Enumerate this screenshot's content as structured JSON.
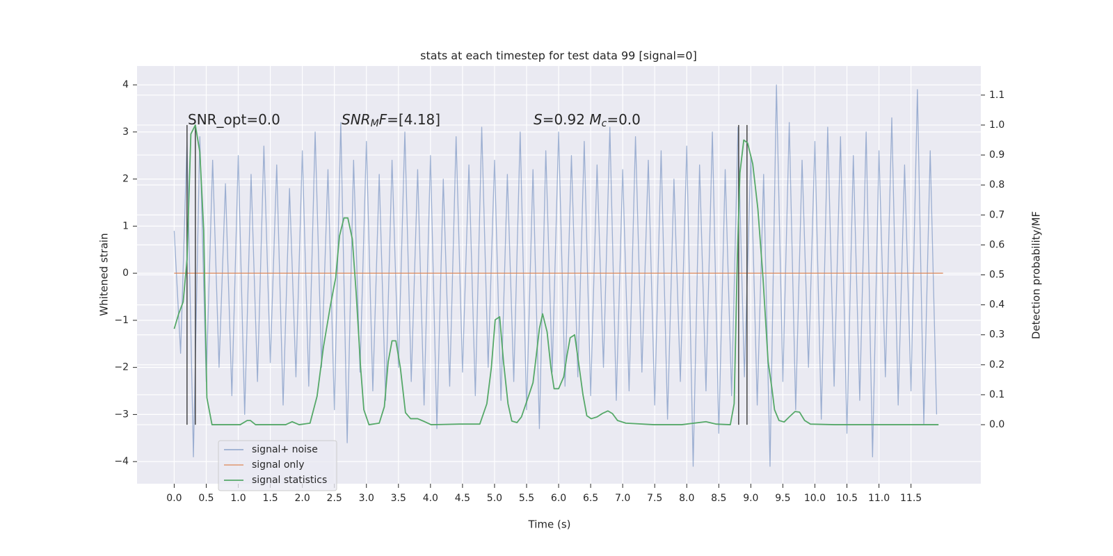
{
  "chart_data": {
    "type": "line",
    "title": "stats at each timestep for test data 99 [signal=0]",
    "x_label": "Time (s)",
    "y_label": "Whitened strain",
    "y2_label": "Detection probability/MF",
    "grid": true,
    "background": "#eaeaf2",
    "legend": "lower left",
    "xlim": [
      -0.58,
      12.59
    ],
    "ylim": [
      -4.47,
      4.4
    ],
    "y2lim": [
      -0.197,
      1.197
    ],
    "xticks": [
      {
        "value": 0,
        "label": "0.0"
      },
      0.5,
      {
        "value": 1,
        "label": "1.0"
      },
      1.5,
      {
        "value": 2,
        "label": "2.0"
      },
      2.5,
      {
        "value": 3,
        "label": "3.0"
      },
      3.5,
      {
        "value": 4,
        "label": "4.0"
      },
      4.5,
      {
        "value": 5,
        "label": "5.0"
      },
      5.5,
      {
        "value": 6,
        "label": "6.0"
      },
      6.5,
      {
        "value": 7,
        "label": "7.0"
      },
      7.5,
      {
        "value": 8,
        "label": "8.0"
      },
      8.5,
      {
        "value": 9,
        "label": "9.0"
      },
      9.5,
      {
        "value": 10,
        "label": "10.0"
      },
      10.5,
      {
        "value": 11,
        "label": "11.0"
      },
      11.5
    ],
    "yticks": [
      {
        "value": -4,
        "label": "−4"
      },
      {
        "value": -3,
        "label": "−3"
      },
      {
        "value": -2,
        "label": "−2"
      },
      {
        "value": -1,
        "label": "−1"
      },
      0,
      1,
      2,
      3,
      4
    ],
    "y2ticks": [
      {
        "value": 0,
        "label": "0.0"
      },
      0.1,
      0.2,
      0.3,
      0.4,
      0.5,
      0.6,
      0.7,
      0.8,
      0.9,
      {
        "value": 1,
        "label": "1.0"
      },
      1.1
    ],
    "annotations": [
      [
        "SNR_opt=0.0"
      ],
      [
        "SNR",
        "M",
        "F",
        "=[4.18]"
      ],
      [
        "S",
        "=0.92   ",
        "M",
        "c",
        "=0.0"
      ]
    ],
    "series": [
      {
        "name": "signal+ noise",
        "color": "#4c72b0",
        "opacity": 0.5,
        "x": [
          0,
          0.1,
          0.2,
          0.3,
          0.4,
          0.5,
          0.6,
          0.7,
          0.8,
          0.9,
          1,
          1.1,
          1.2,
          1.3,
          1.4,
          1.5,
          1.6,
          1.7,
          1.8,
          1.9,
          2,
          2.1,
          2.2,
          2.3,
          2.4,
          2.5,
          2.6,
          2.7,
          2.8,
          2.9,
          3,
          3.1,
          3.2,
          3.3,
          3.4,
          3.5,
          3.6,
          3.7,
          3.8,
          3.9,
          4,
          4.1,
          4.2,
          4.3,
          4.4,
          4.5,
          4.6,
          4.7,
          4.8,
          4.9,
          5,
          5.1,
          5.2,
          5.3,
          5.4,
          5.5,
          5.6,
          5.7,
          5.8,
          5.9,
          6,
          6.1,
          6.2,
          6.3,
          6.4,
          6.5,
          6.6,
          6.7,
          6.8,
          6.9,
          7,
          7.1,
          7.2,
          7.3,
          7.4,
          7.5,
          7.6,
          7.7,
          7.8,
          7.9,
          8,
          8.1,
          8.2,
          8.3,
          8.4,
          8.5,
          8.6,
          8.7,
          8.8,
          8.9,
          9,
          9.1,
          9.2,
          9.3,
          9.4,
          9.5,
          9.6,
          9.7,
          9.8,
          9.9,
          10,
          10.1,
          10.2,
          10.3,
          10.4,
          10.5,
          10.6,
          10.7,
          10.8,
          10.9,
          11,
          11.1,
          11.2,
          11.3,
          11.4,
          11.5,
          11.6,
          11.7,
          11.8,
          11.9
        ],
        "values": [
          0.9,
          -1.7,
          2.8,
          -3.9,
          2.9,
          -2.3,
          2.4,
          -2.0,
          1.9,
          -2.6,
          2.5,
          -3.0,
          2.1,
          -2.3,
          2.7,
          -1.9,
          2.3,
          -2.8,
          1.8,
          -2.2,
          2.6,
          -2.4,
          3.0,
          -2.0,
          2.2,
          -2.9,
          3.2,
          -3.6,
          2.4,
          -2.1,
          2.8,
          -2.5,
          2.1,
          -2.7,
          2.4,
          -2.0,
          3.0,
          -2.3,
          2.2,
          -2.8,
          2.5,
          -3.3,
          2.0,
          -2.4,
          2.9,
          -2.1,
          2.3,
          -2.6,
          3.1,
          -2.0,
          2.4,
          -2.7,
          2.1,
          -2.3,
          3.0,
          -2.9,
          2.2,
          -3.3,
          2.6,
          -2.1,
          3.0,
          -2.4,
          2.5,
          -2.2,
          2.8,
          -2.6,
          2.3,
          -2.0,
          3.1,
          -2.7,
          2.2,
          -2.5,
          2.9,
          -2.1,
          2.4,
          -2.8,
          2.6,
          -3.1,
          2.0,
          -2.3,
          2.7,
          -4.1,
          2.3,
          -2.5,
          3.0,
          -3.4,
          2.2,
          -2.6,
          3.1,
          -2.2,
          2.5,
          -2.8,
          2.1,
          -4.1,
          4.0,
          -2.3,
          3.2,
          -2.9,
          2.4,
          -2.0,
          2.8,
          -3.1,
          3.1,
          -2.4,
          2.9,
          -3.4,
          2.5,
          -2.7,
          3.0,
          -3.9,
          2.6,
          -2.2,
          3.3,
          -2.8,
          2.3,
          -2.5,
          3.9,
          -3.2,
          2.6,
          -3.0
        ]
      },
      {
        "name": "signal only",
        "color": "#dd8452",
        "opacity": 0.7,
        "x": [
          0,
          12
        ],
        "values": [
          0,
          0
        ]
      },
      {
        "name": "signal statistics",
        "color": "#55a868",
        "opacity": 1,
        "axis": "y2",
        "x": [
          0,
          0.07,
          0.14,
          0.2,
          0.26,
          0.33,
          0.4,
          0.46,
          0.51,
          0.59,
          1.03,
          1.14,
          1.19,
          1.27,
          1.74,
          1.84,
          1.95,
          2.12,
          2.23,
          2.33,
          2.44,
          2.52,
          2.58,
          2.65,
          2.71,
          2.78,
          2.84,
          2.91,
          2.96,
          3.04,
          3.2,
          3.28,
          3.34,
          3.4,
          3.46,
          3.53,
          3.61,
          3.69,
          3.8,
          3.91,
          4.01,
          4.45,
          4.77,
          4.88,
          4.95,
          5.01,
          5.08,
          5.14,
          5.21,
          5.27,
          5.35,
          5.42,
          5.53,
          5.6,
          5.64,
          5.7,
          5.75,
          5.82,
          5.88,
          5.93,
          6.0,
          6.08,
          6.13,
          6.18,
          6.25,
          6.31,
          6.38,
          6.44,
          6.51,
          6.6,
          6.68,
          6.77,
          6.84,
          6.92,
          7.05,
          7.49,
          7.92,
          8.3,
          8.46,
          8.68,
          8.74,
          8.79,
          8.83,
          8.89,
          8.95,
          9.03,
          9.11,
          9.19,
          9.27,
          9.33,
          9.37,
          9.44,
          9.52,
          9.6,
          9.69,
          9.76,
          9.84,
          9.93,
          10.31,
          11.93
        ],
        "values": [
          0.32,
          0.37,
          0.41,
          0.55,
          0.97,
          1.0,
          0.91,
          0.65,
          0.09,
          0.0,
          0.0,
          0.014,
          0.014,
          0.0,
          0.0,
          0.01,
          0.0,
          0.005,
          0.095,
          0.26,
          0.4,
          0.49,
          0.63,
          0.69,
          0.69,
          0.62,
          0.44,
          0.19,
          0.05,
          0.0,
          0.005,
          0.06,
          0.21,
          0.28,
          0.28,
          0.19,
          0.04,
          0.02,
          0.02,
          0.01,
          0.0,
          0.002,
          0.002,
          0.07,
          0.19,
          0.35,
          0.36,
          0.21,
          0.07,
          0.012,
          0.007,
          0.026,
          0.095,
          0.14,
          0.21,
          0.32,
          0.37,
          0.31,
          0.19,
          0.12,
          0.12,
          0.16,
          0.23,
          0.29,
          0.3,
          0.21,
          0.1,
          0.03,
          0.02,
          0.026,
          0.037,
          0.046,
          0.037,
          0.014,
          0.005,
          0.0,
          0.0,
          0.01,
          0.002,
          0.0,
          0.07,
          0.56,
          0.84,
          0.95,
          0.94,
          0.87,
          0.72,
          0.49,
          0.21,
          0.12,
          0.05,
          0.014,
          0.009,
          0.026,
          0.044,
          0.042,
          0.014,
          0.002,
          0.0,
          0.0
        ]
      }
    ],
    "vlines": {
      "x": [
        0.2,
        0.33,
        8.81,
        8.94
      ],
      "ymin": 0,
      "ymax": 1,
      "axis": "y2",
      "color": "#444444"
    }
  }
}
